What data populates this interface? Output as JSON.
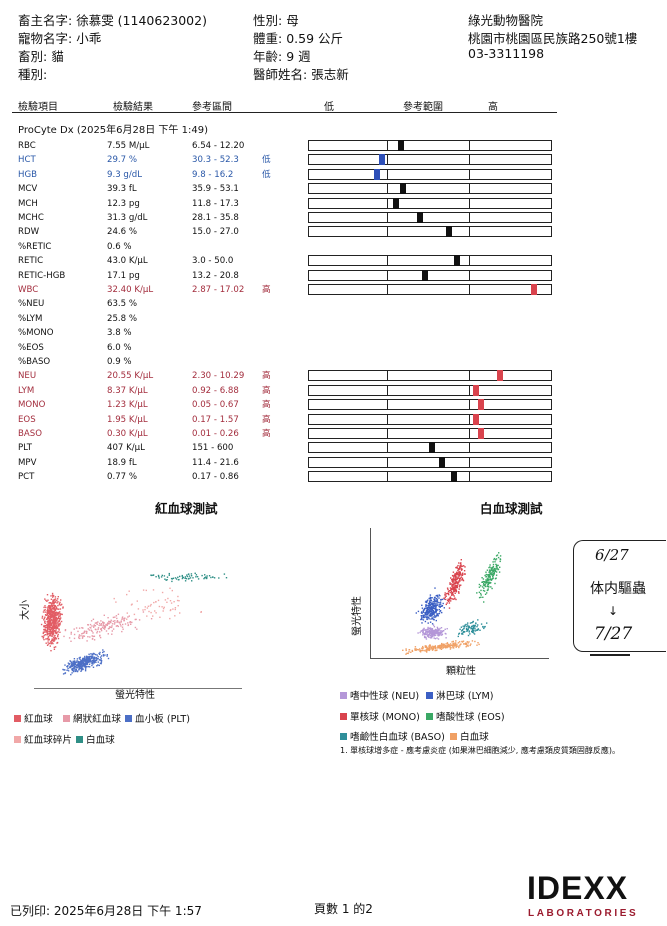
{
  "header": {
    "owner_label": "畜主名字:",
    "owner": "徐慕雯 (1140623002)",
    "pet_label": "寵物名字:",
    "pet": "小乖",
    "species_label": "畜別:",
    "species": "貓",
    "breed_label": "種別:",
    "sex_label": "性別:",
    "sex": "母",
    "weight_label": "體重:",
    "weight": "0.59 公斤",
    "age_label": "年齡:",
    "age": "9 週",
    "doctor_label": "醫師姓名:",
    "doctor": "張志新",
    "clinic_name": "綠光動物醫院",
    "clinic_address": "桃園市桃園區民族路250號1樓",
    "clinic_phone": "03-3311198"
  },
  "table_header": {
    "item": "檢驗項目",
    "result": "檢驗結果",
    "ref": "參考區間",
    "low": "低",
    "range": "參考範圍",
    "high": "高"
  },
  "section_title": "ProCyte Dx (2025年6月28日 下午 1:49)",
  "rows": [
    {
      "name": "RBC",
      "result": "7.55 M/µL",
      "ref": "6.54 - 12.20",
      "flag": "",
      "status": "n",
      "bar": true,
      "level": 0.38
    },
    {
      "name": "HCT",
      "result": "29.7 %",
      "ref": "30.3 - 52.3",
      "flag": "低",
      "status": "l",
      "bar": true,
      "level": 0.3
    },
    {
      "name": "HGB",
      "result": "9.3 g/dL",
      "ref": "9.8 - 16.2",
      "flag": "低",
      "status": "l",
      "bar": true,
      "level": 0.28
    },
    {
      "name": "MCV",
      "result": "39.3 fL",
      "ref": "35.9 - 53.1",
      "flag": "",
      "status": "n",
      "bar": true,
      "level": 0.39
    },
    {
      "name": "MCH",
      "result": "12.3 pg",
      "ref": "11.8 - 17.3",
      "flag": "",
      "status": "n",
      "bar": true,
      "level": 0.36
    },
    {
      "name": "MCHC",
      "result": "31.3 g/dL",
      "ref": "28.1 - 35.8",
      "flag": "",
      "status": "n",
      "bar": true,
      "level": 0.46
    },
    {
      "name": "RDW",
      "result": "24.6 %",
      "ref": "15.0 - 27.0",
      "flag": "",
      "status": "n",
      "bar": true,
      "level": 0.58
    },
    {
      "name": "%RETIC",
      "result": "0.6 %",
      "ref": "",
      "flag": "",
      "status": "n",
      "bar": false
    },
    {
      "name": "RETIC",
      "result": "43.0 K/µL",
      "ref": "3.0 - 50.0",
      "flag": "",
      "status": "n",
      "bar": true,
      "level": 0.61
    },
    {
      "name": "RETIC-HGB",
      "result": "17.1 pg",
      "ref": "13.2 - 20.8",
      "flag": "",
      "status": "n",
      "bar": true,
      "level": 0.48
    },
    {
      "name": "WBC",
      "result": "32.40 K/µL",
      "ref": "2.87 - 17.02",
      "flag": "高",
      "status": "h",
      "bar": true,
      "level": 0.93
    },
    {
      "name": "%NEU",
      "result": "63.5 %",
      "ref": "",
      "flag": "",
      "status": "n",
      "bar": false
    },
    {
      "name": "%LYM",
      "result": "25.8 %",
      "ref": "",
      "flag": "",
      "status": "n",
      "bar": false
    },
    {
      "name": "%MONO",
      "result": "3.8 %",
      "ref": "",
      "flag": "",
      "status": "n",
      "bar": false
    },
    {
      "name": "%EOS",
      "result": "6.0 %",
      "ref": "",
      "flag": "",
      "status": "n",
      "bar": false
    },
    {
      "name": "%BASO",
      "result": "0.9 %",
      "ref": "",
      "flag": "",
      "status": "n",
      "bar": false
    },
    {
      "name": "NEU",
      "result": "20.55 K/µL",
      "ref": "2.30 - 10.29",
      "flag": "高",
      "status": "h",
      "bar": true,
      "level": 0.79
    },
    {
      "name": "LYM",
      "result": "8.37 K/µL",
      "ref": "0.92 - 6.88",
      "flag": "高",
      "status": "h",
      "bar": true,
      "level": 0.69
    },
    {
      "name": "MONO",
      "result": "1.23 K/µL",
      "ref": "0.05 - 0.67",
      "flag": "高",
      "status": "h",
      "bar": true,
      "level": 0.71
    },
    {
      "name": "EOS",
      "result": "1.95 K/µL",
      "ref": "0.17 - 1.57",
      "flag": "高",
      "status": "h",
      "bar": true,
      "level": 0.69
    },
    {
      "name": "BASO",
      "result": "0.30 K/µL",
      "ref": "0.01 - 0.26",
      "flag": "高",
      "status": "h",
      "bar": true,
      "level": 0.71
    },
    {
      "name": "PLT",
      "result": "407 K/µL",
      "ref": "151 - 600",
      "flag": "",
      "status": "n",
      "bar": true,
      "level": 0.51
    },
    {
      "name": "MPV",
      "result": "18.9 fL",
      "ref": "11.4 - 21.6",
      "flag": "",
      "status": "n",
      "bar": true,
      "level": 0.55
    },
    {
      "name": "PCT",
      "result": "0.77 %",
      "ref": "0.17 - 0.86",
      "flag": "",
      "status": "n",
      "bar": true,
      "level": 0.6
    }
  ],
  "rbc_plot": {
    "title": "紅血球測試",
    "ylabel": "大小",
    "xlabel": "螢光特性",
    "legend": [
      {
        "label": "紅血球",
        "color": "#e25c64"
      },
      {
        "label": "網狀紅血球",
        "color": "#e79aa8"
      },
      {
        "label": "血小板 (PLT)",
        "color": "#4c6fc6"
      },
      {
        "label": "紅血球碎片",
        "color": "#f1a8a8"
      },
      {
        "label": "白血球",
        "color": "#2f8f86"
      }
    ]
  },
  "wbc_plot": {
    "title": "白血球測試",
    "ylabel": "螢光特性",
    "xlabel": "顆粒性",
    "legend": [
      {
        "label": "嗜中性球 (NEU)",
        "color": "#b497d8"
      },
      {
        "label": "淋巴球 (LYM)",
        "color": "#3b5fc4"
      },
      {
        "label": "單核球 (MONO)",
        "color": "#d9434d"
      },
      {
        "label": "嗜酸性球 (EOS)",
        "color": "#3aa865"
      },
      {
        "label": "嗜鹼性白血球 (BASO)",
        "color": "#2f8f9a"
      },
      {
        "label": "白血球",
        "color": "#f0a064"
      }
    ],
    "footnote": "1. 單核球增多症 - 應考慮炎症 (如果淋巴細胞減少, 應考慮類皮質類固醇反應)。"
  },
  "handwritten_note": {
    "line1": "6/27",
    "line2": "体内驅蟲",
    "line3": "7/27"
  },
  "footer": {
    "printed": "已列印: 2025年6月28日 下午 1:57",
    "page": "頁數 1 的2",
    "logo": "IDEXX",
    "logo_sub": "LABORATORIES"
  }
}
